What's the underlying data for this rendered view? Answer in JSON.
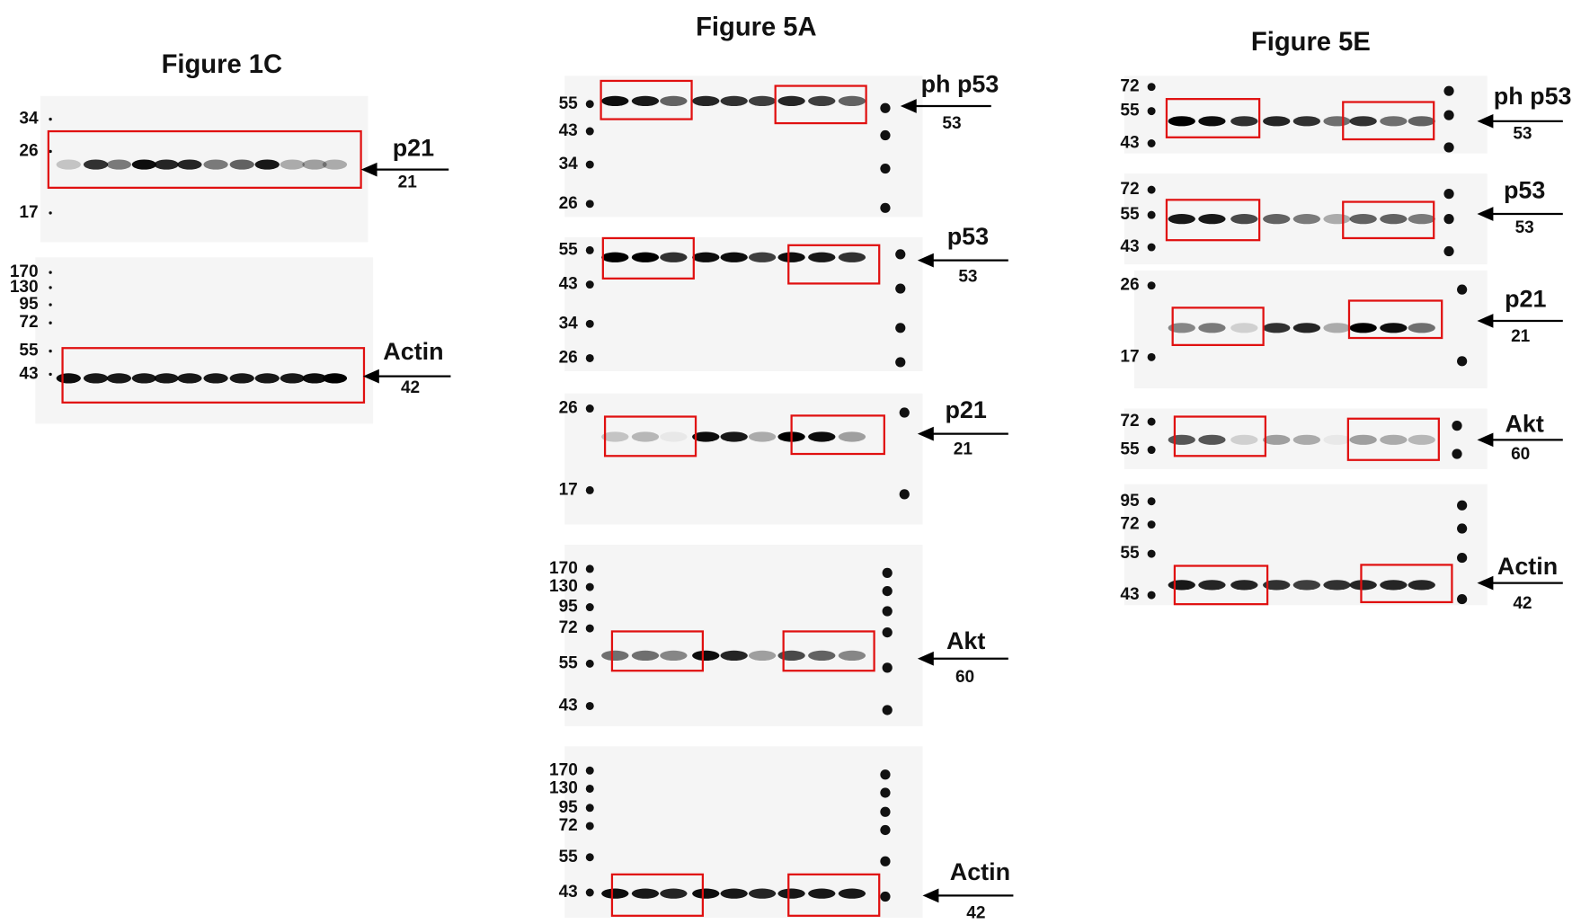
{
  "figures": [
    {
      "title": "Figure 1C",
      "panels": [
        {
          "markers": [
            "34",
            "26",
            "17"
          ],
          "protein": "p21",
          "size": "21"
        },
        {
          "markers": [
            "170",
            "130",
            "95",
            "72",
            "55",
            "43"
          ],
          "protein": "Actin",
          "size": "42"
        }
      ]
    },
    {
      "title": "Figure 5A",
      "panels": [
        {
          "markers": [
            "55",
            "43",
            "34",
            "26"
          ],
          "protein": "ph p53",
          "size": "53"
        },
        {
          "markers": [
            "55",
            "43",
            "34",
            "26"
          ],
          "protein": "p53",
          "size": "53"
        },
        {
          "markers": [
            "26",
            "17"
          ],
          "protein": "p21",
          "size": "21"
        },
        {
          "markers": [
            "170",
            "130",
            "95",
            "72",
            "55",
            "43"
          ],
          "protein": "Akt",
          "size": "60"
        },
        {
          "markers": [
            "170",
            "130",
            "95",
            "72",
            "55",
            "43"
          ],
          "protein": "Actin",
          "size": "42"
        }
      ]
    },
    {
      "title": "Figure 5E",
      "panels": [
        {
          "markers": [
            "72",
            "55",
            "43"
          ],
          "protein": "ph p53",
          "size": "53"
        },
        {
          "markers": [
            "72",
            "55",
            "43"
          ],
          "protein": "p53",
          "size": "53"
        },
        {
          "markers": [
            "26",
            "17"
          ],
          "protein": "p21",
          "size": "21"
        },
        {
          "markers": [
            "72",
            "55"
          ],
          "protein": "Akt",
          "size": "60"
        },
        {
          "markers": [
            "95",
            "72",
            "55",
            "43"
          ],
          "protein": "Actin",
          "size": "42"
        }
      ]
    }
  ]
}
